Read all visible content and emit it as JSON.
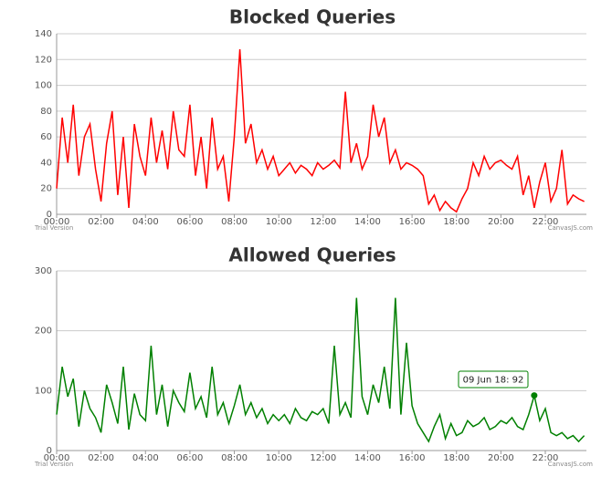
{
  "chart_data": [
    {
      "type": "line",
      "title": "Blocked Queries",
      "color": "#ff0000",
      "grid": true,
      "watermark": "Trial Version",
      "credit": "CanvasJS.com",
      "x": [
        0,
        0.25,
        0.5,
        0.75,
        1,
        1.25,
        1.5,
        1.75,
        2,
        2.25,
        2.5,
        2.75,
        3,
        3.25,
        3.5,
        3.75,
        4,
        4.25,
        4.5,
        4.75,
        5,
        5.25,
        5.5,
        5.75,
        6,
        6.25,
        6.5,
        6.75,
        7,
        7.25,
        7.5,
        7.75,
        8,
        8.25,
        8.5,
        8.75,
        9,
        9.25,
        9.5,
        9.75,
        10,
        10.25,
        10.5,
        10.75,
        11,
        11.25,
        11.5,
        11.75,
        12,
        12.25,
        12.5,
        12.75,
        13,
        13.25,
        13.5,
        13.75,
        14,
        14.25,
        14.5,
        14.75,
        15,
        15.25,
        15.5,
        15.75,
        16,
        16.25,
        16.5,
        16.75,
        17,
        17.25,
        17.5,
        17.75,
        18,
        18.25,
        18.5,
        18.75,
        19,
        19.25,
        19.5,
        19.75,
        20,
        20.25,
        20.5,
        20.75,
        21,
        21.25,
        21.5,
        21.75,
        22,
        22.25,
        22.5,
        22.75,
        23,
        23.25,
        23.5,
        23.75
      ],
      "values": [
        20,
        75,
        40,
        85,
        30,
        60,
        70,
        35,
        10,
        55,
        80,
        15,
        60,
        5,
        70,
        45,
        30,
        75,
        40,
        65,
        35,
        80,
        50,
        45,
        85,
        30,
        60,
        20,
        75,
        35,
        45,
        10,
        60,
        128,
        55,
        70,
        40,
        50,
        35,
        45,
        30,
        35,
        40,
        32,
        38,
        35,
        30,
        40,
        35,
        38,
        42,
        36,
        95,
        40,
        55,
        35,
        45,
        85,
        60,
        75,
        40,
        50,
        35,
        40,
        38,
        35,
        30,
        8,
        15,
        3,
        10,
        5,
        2,
        12,
        20,
        40,
        30,
        45,
        35,
        40,
        42,
        38,
        35,
        45,
        15,
        30,
        5,
        25,
        40,
        10,
        20,
        50,
        8,
        15,
        12,
        10
      ],
      "xlim": [
        0,
        23.85
      ],
      "ylim": [
        0,
        140
      ],
      "yticks": [
        0,
        20,
        40,
        60,
        80,
        100,
        120,
        140
      ],
      "xticks": [
        {
          "value": 0,
          "label": "00:00"
        },
        {
          "value": 2,
          "label": "02:00"
        },
        {
          "value": 4,
          "label": "04:00"
        },
        {
          "value": 6,
          "label": "06:00"
        },
        {
          "value": 8,
          "label": "08:00"
        },
        {
          "value": 10,
          "label": "10:00"
        },
        {
          "value": 12,
          "label": "12:00"
        },
        {
          "value": 14,
          "label": "14:00"
        },
        {
          "value": 16,
          "label": "16:00"
        },
        {
          "value": 18,
          "label": "18:00"
        },
        {
          "value": 20,
          "label": "20:00"
        },
        {
          "value": 22,
          "label": "22:00"
        }
      ]
    },
    {
      "type": "line",
      "title": "Allowed Queries",
      "color": "#008000",
      "grid": true,
      "watermark": "Trial Version",
      "credit": "CanvasJS.com",
      "x": [
        0,
        0.25,
        0.5,
        0.75,
        1,
        1.25,
        1.5,
        1.75,
        2,
        2.25,
        2.5,
        2.75,
        3,
        3.25,
        3.5,
        3.75,
        4,
        4.25,
        4.5,
        4.75,
        5,
        5.25,
        5.5,
        5.75,
        6,
        6.25,
        6.5,
        6.75,
        7,
        7.25,
        7.5,
        7.75,
        8,
        8.25,
        8.5,
        8.75,
        9,
        9.25,
        9.5,
        9.75,
        10,
        10.25,
        10.5,
        10.75,
        11,
        11.25,
        11.5,
        11.75,
        12,
        12.25,
        12.5,
        12.75,
        13,
        13.25,
        13.5,
        13.75,
        14,
        14.25,
        14.5,
        14.75,
        15,
        15.25,
        15.5,
        15.75,
        16,
        16.25,
        16.5,
        16.75,
        17,
        17.25,
        17.5,
        17.75,
        18,
        18.25,
        18.5,
        18.75,
        19,
        19.25,
        19.5,
        19.75,
        20,
        20.25,
        20.5,
        20.75,
        21,
        21.25,
        21.5,
        21.75,
        22,
        22.25,
        22.5,
        22.75,
        23,
        23.25,
        23.5,
        23.75
      ],
      "values": [
        60,
        140,
        90,
        120,
        40,
        100,
        70,
        55,
        30,
        110,
        80,
        45,
        140,
        35,
        95,
        60,
        50,
        175,
        60,
        110,
        40,
        100,
        80,
        65,
        130,
        70,
        90,
        55,
        140,
        60,
        80,
        45,
        75,
        110,
        60,
        80,
        55,
        70,
        45,
        60,
        50,
        60,
        45,
        70,
        55,
        50,
        65,
        60,
        70,
        45,
        175,
        60,
        80,
        55,
        255,
        90,
        60,
        110,
        80,
        140,
        70,
        255,
        60,
        180,
        75,
        45,
        30,
        15,
        40,
        60,
        20,
        45,
        25,
        30,
        50,
        40,
        45,
        55,
        35,
        40,
        50,
        45,
        55,
        40,
        35,
        60,
        92,
        50,
        70,
        30,
        25,
        30,
        20,
        25,
        15,
        25
      ],
      "xlim": [
        0,
        23.85
      ],
      "ylim": [
        0,
        300
      ],
      "yticks": [
        0,
        100,
        200,
        300
      ],
      "xticks": [
        {
          "value": 0,
          "label": "00:00"
        },
        {
          "value": 2,
          "label": "02:00"
        },
        {
          "value": 4,
          "label": "04:00"
        },
        {
          "value": 6,
          "label": "06:00"
        },
        {
          "value": 8,
          "label": "08:00"
        },
        {
          "value": 10,
          "label": "10:00"
        },
        {
          "value": 12,
          "label": "12:00"
        },
        {
          "value": 14,
          "label": "14:00"
        },
        {
          "value": 16,
          "label": "16:00"
        },
        {
          "value": 18,
          "label": "18:00"
        },
        {
          "value": 20,
          "label": "20:00"
        },
        {
          "value": 22,
          "label": "22:00"
        }
      ],
      "tooltip": {
        "text": "09 Jun 18: 92",
        "x": 21.5,
        "value": 92
      }
    }
  ]
}
